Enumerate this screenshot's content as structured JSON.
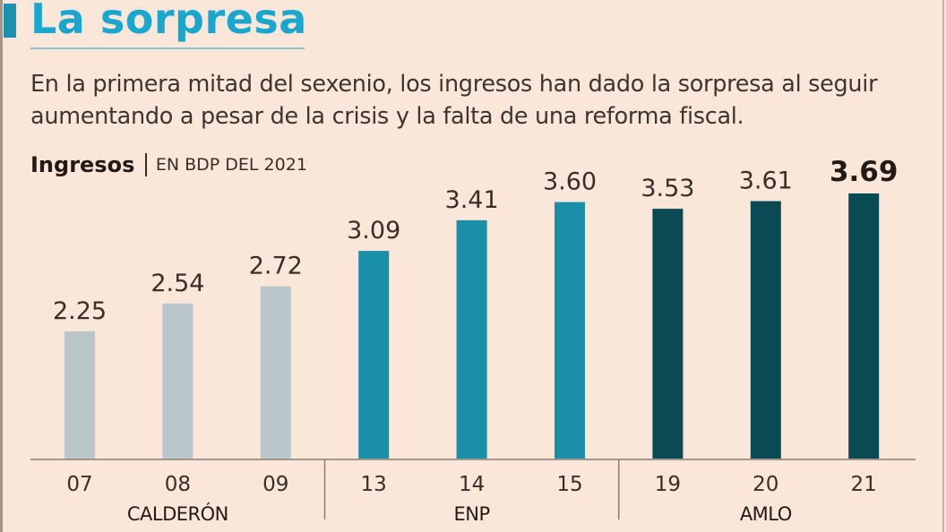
{
  "header": {
    "title": "La sorpresa",
    "subtitle": "En la primera mitad del sexenio, los ingresos han dado la sorpresa al seguir aumentando a pesar de la crisis y la falta de una reforma fiscal."
  },
  "colors": {
    "background": "#fbe7da",
    "title": "#1aa7cf",
    "calderon": "#b9c7ca",
    "enp": "#1a8fa8",
    "amlo": "#0a4a55",
    "text": "#3a2e28"
  },
  "chart_data": {
    "type": "bar",
    "title": "Ingresos",
    "unit_label": "EN BDP DEL 2021",
    "xlabel": "",
    "ylabel": "",
    "ylim": [
      0.92,
      3.69
    ],
    "grid": false,
    "legend": "none",
    "categories": [
      "07",
      "08",
      "09",
      "13",
      "14",
      "15",
      "19",
      "20",
      "21"
    ],
    "values": [
      2.25,
      2.54,
      2.72,
      3.09,
      3.41,
      3.6,
      3.53,
      3.61,
      3.69
    ],
    "data_labels": [
      "2.25",
      "2.54",
      "2.72",
      "3.09",
      "3.41",
      "3.60",
      "3.53",
      "3.61",
      "3.69"
    ],
    "highlight_index": 8,
    "groups": [
      {
        "name": "CALDERÓN",
        "categories": [
          "07",
          "08",
          "09"
        ],
        "color_key": "calderon"
      },
      {
        "name": "ENP",
        "categories": [
          "13",
          "14",
          "15"
        ],
        "color_key": "enp"
      },
      {
        "name": "AMLO",
        "categories": [
          "19",
          "20",
          "21"
        ],
        "color_key": "amlo"
      }
    ]
  }
}
